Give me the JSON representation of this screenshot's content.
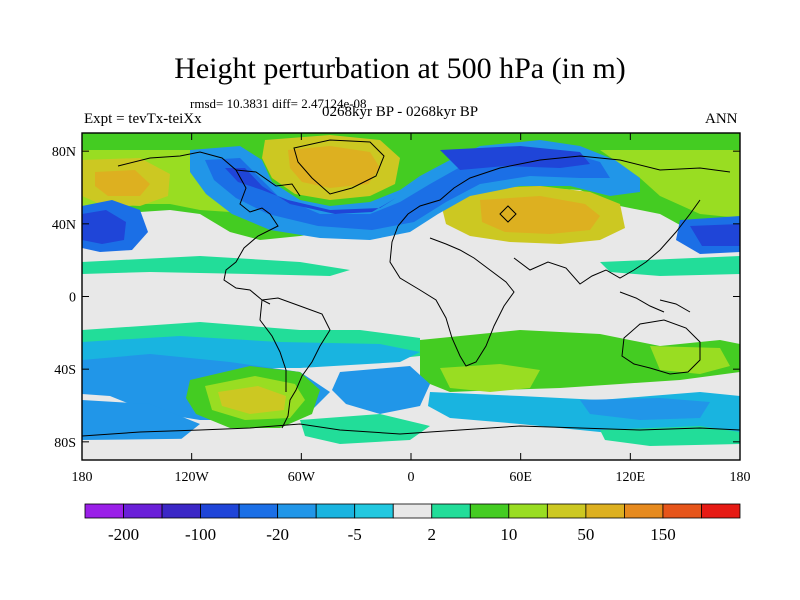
{
  "title": "Height perturbation at 500 hPa (in m)",
  "stats": "rmsd= 10.3831 diff= 2.47124e-08",
  "left_label": "Expt = tevTx-teiXx",
  "center_label": "0268kyr BP - 0268kyr BP",
  "right_label": "ANN",
  "lat_ticks": [
    {
      "label": "80N",
      "lat": 80
    },
    {
      "label": "40N",
      "lat": 40
    },
    {
      "label": "0",
      "lat": 0
    },
    {
      "label": "40S",
      "lat": -40
    },
    {
      "label": "80S",
      "lat": -80
    }
  ],
  "lon_ticks": [
    {
      "label": "180",
      "lon": -180
    },
    {
      "label": "120W",
      "lon": -120
    },
    {
      "label": "60W",
      "lon": -60
    },
    {
      "label": "0",
      "lon": 0
    },
    {
      "label": "60E",
      "lon": 60
    },
    {
      "label": "120E",
      "lon": 120
    },
    {
      "label": "180",
      "lon": 180
    }
  ],
  "colorbar": {
    "colors": [
      "#9a1fe8",
      "#6a1fd8",
      "#3b27c6",
      "#1f45d8",
      "#1b6fe6",
      "#2196e8",
      "#19b4e0",
      "#22c8e0",
      "#e8e8e8",
      "#22dd99",
      "#44cc22",
      "#99dd22",
      "#ccc822",
      "#ddb020",
      "#e68a1e",
      "#e6551a",
      "#e61a14"
    ],
    "labels": [
      {
        "text": "-200",
        "boundary": 1
      },
      {
        "text": "-100",
        "boundary": 3
      },
      {
        "text": "-20",
        "boundary": 5
      },
      {
        "text": "-5",
        "boundary": 7
      },
      {
        "text": "2",
        "boundary": 9
      },
      {
        "text": "10",
        "boundary": 11
      },
      {
        "text": "50",
        "boundary": 13
      },
      {
        "text": "150",
        "boundary": 15
      }
    ]
  }
}
